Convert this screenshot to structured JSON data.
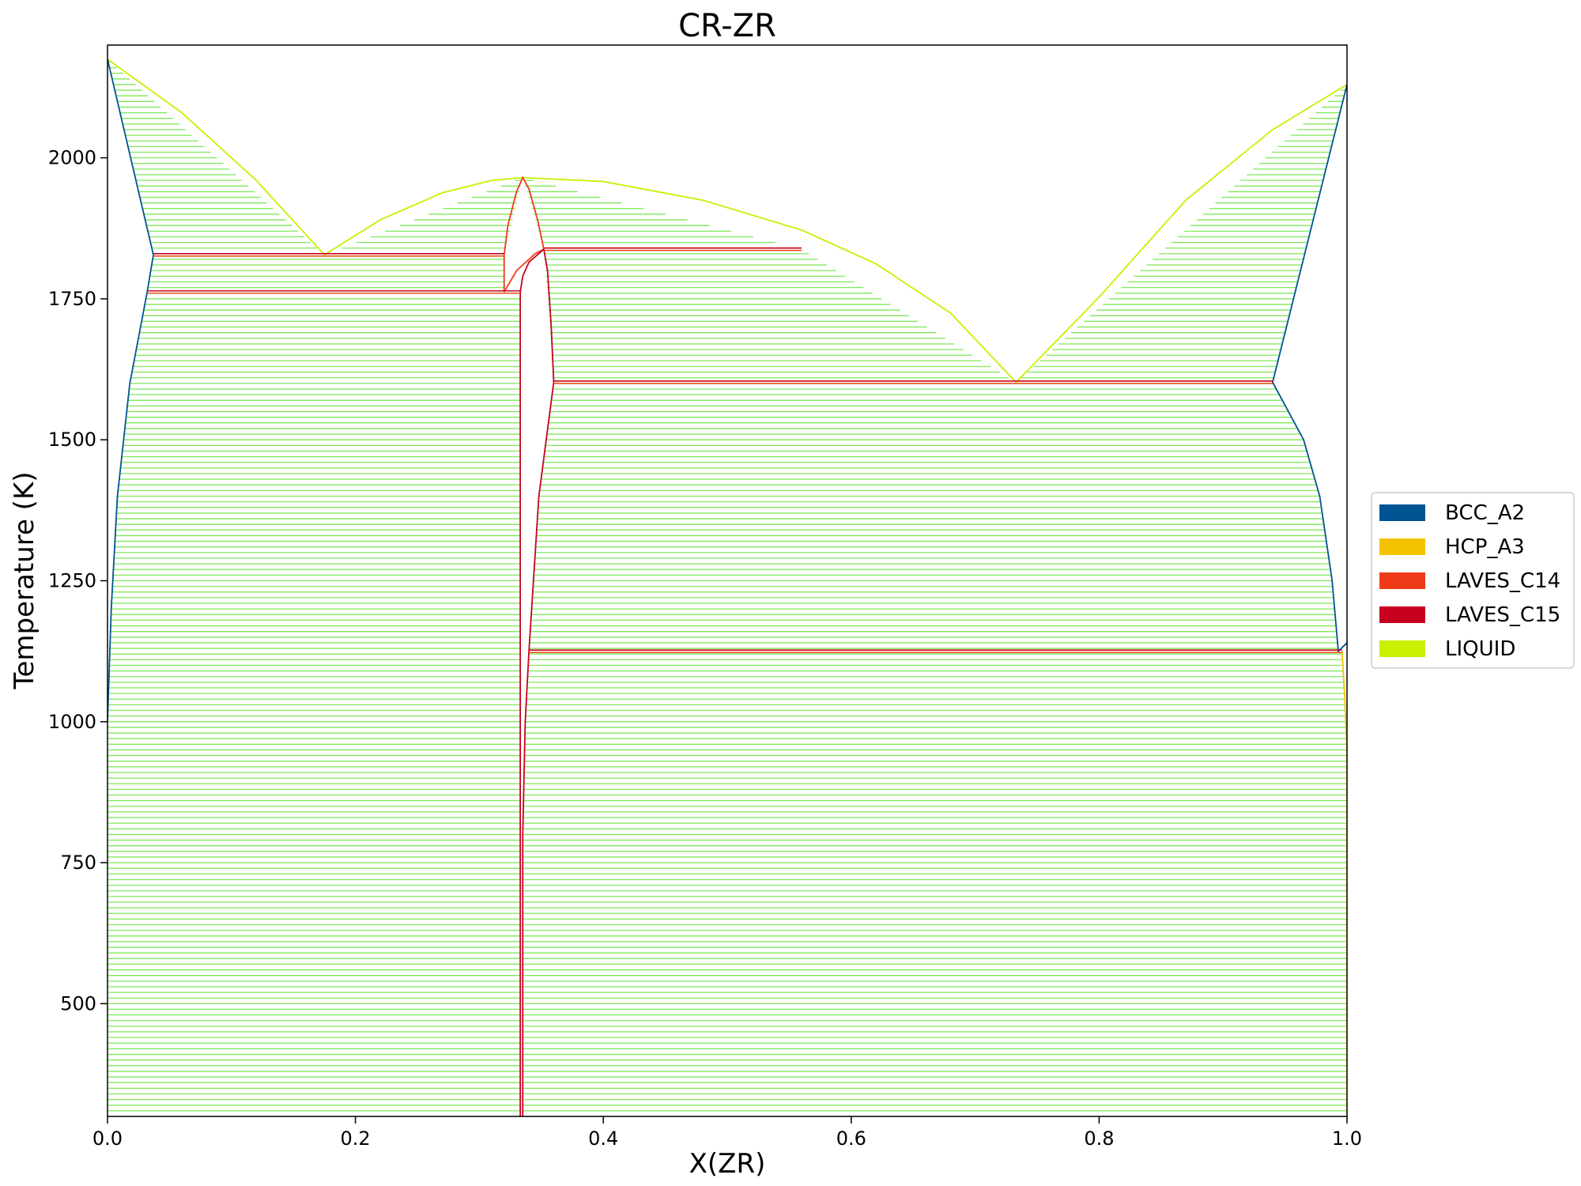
{
  "chart_data": {
    "type": "line",
    "title": "CR-ZR",
    "xlabel": "X(ZR)",
    "ylabel": "Temperature (K)",
    "xlim": [
      0.0,
      1.0
    ],
    "ylim": [
      300,
      2200
    ],
    "xticks": [
      0.0,
      0.2,
      0.4,
      0.6,
      0.8,
      1.0
    ],
    "xtick_labels": [
      "0.0",
      "0.2",
      "0.4",
      "0.6",
      "0.8",
      "1.0"
    ],
    "yticks": [
      500,
      750,
      1000,
      1250,
      1500,
      1750,
      2000
    ],
    "ytick_labels": [
      "500",
      "750",
      "1000",
      "1250",
      "1500",
      "1750",
      "2000"
    ],
    "grid": false,
    "legend_position": "right",
    "tie_line_color": "#7ee85a",
    "legend": [
      {
        "name": "BCC_A2",
        "color": "#005493"
      },
      {
        "name": "HCP_A3",
        "color": "#f4c300"
      },
      {
        "name": "LAVES_C14",
        "color": "#ee3a18"
      },
      {
        "name": "LAVES_C15",
        "color": "#c8001e"
      },
      {
        "name": "LIQUID",
        "color": "#c8f000"
      }
    ],
    "tie_line_regions": [
      {
        "name": "liquid+bcc-cr",
        "tmin": 1828,
        "tmax": 2175,
        "left": [
          [
            2175,
            0.0
          ],
          [
            1828,
            0.037
          ]
        ],
        "right": [
          [
            2175,
            0.0
          ],
          [
            1828,
            0.175
          ]
        ]
      },
      {
        "name": "liquid+c14-left",
        "tmin": 1828,
        "tmax": 1965,
        "left": [
          [
            1965,
            0.335
          ],
          [
            1828,
            0.175
          ]
        ],
        "right": [
          [
            1965,
            0.335
          ],
          [
            1828,
            0.32
          ]
        ]
      },
      {
        "name": "liquid+c14-right",
        "tmin": 1838,
        "tmax": 1965,
        "left": [
          [
            1965,
            0.335
          ],
          [
            1838,
            0.352
          ]
        ],
        "right": [
          [
            1965,
            0.335
          ],
          [
            1838,
            0.56
          ]
        ]
      },
      {
        "name": "liquid+c15",
        "tmin": 1602,
        "tmax": 1838,
        "left": [
          [
            1838,
            0.352
          ],
          [
            1602,
            0.36
          ]
        ],
        "right": [
          [
            1838,
            0.56
          ],
          [
            1602,
            0.733
          ]
        ]
      },
      {
        "name": "liquid+bcc-zr",
        "tmin": 1602,
        "tmax": 2130,
        "left": [
          [
            2130,
            1.0
          ],
          [
            1602,
            0.733
          ]
        ],
        "right": [
          [
            2130,
            1.0
          ],
          [
            1602,
            0.94
          ]
        ]
      },
      {
        "name": "bcc-cr+c14",
        "tmin": 1762,
        "tmax": 1828,
        "left": [
          [
            1828,
            0.037
          ],
          [
            1762,
            0.032
          ]
        ],
        "right": [
          [
            1828,
            0.32
          ],
          [
            1762,
            0.32
          ]
        ]
      },
      {
        "name": "bcc-cr+c15",
        "tmin": 300,
        "tmax": 1762,
        "left": [
          [
            1762,
            0.032
          ],
          [
            1600,
            0.018
          ],
          [
            1400,
            0.008
          ],
          [
            1200,
            0.003
          ],
          [
            1000,
            0.0
          ],
          [
            300,
            0.0
          ]
        ],
        "right": [
          [
            1762,
            0.333
          ],
          [
            300,
            0.333
          ]
        ]
      },
      {
        "name": "c15+bcc-zr",
        "tmin": 1125,
        "tmax": 1602,
        "left": [
          [
            1602,
            0.36
          ],
          [
            1400,
            0.348
          ],
          [
            1125,
            0.34
          ]
        ],
        "right": [
          [
            1602,
            0.94
          ],
          [
            1500,
            0.965
          ],
          [
            1400,
            0.978
          ],
          [
            1250,
            0.988
          ],
          [
            1125,
            0.993
          ]
        ]
      },
      {
        "name": "c15+hcp-zr",
        "tmin": 300,
        "tmax": 1125,
        "left": [
          [
            1125,
            0.34
          ],
          [
            1000,
            0.337
          ],
          [
            800,
            0.335
          ],
          [
            300,
            0.335
          ]
        ],
        "right": [
          [
            1125,
            0.996
          ],
          [
            950,
            1.0
          ],
          [
            300,
            1.0
          ]
        ]
      }
    ],
    "tie_line_step": 10,
    "boundaries": [
      {
        "phase": "LIQUID",
        "color": "#c8f000",
        "points": [
          [
            0.0,
            2175
          ],
          [
            0.06,
            2080
          ],
          [
            0.12,
            1960
          ],
          [
            0.175,
            1828
          ]
        ]
      },
      {
        "phase": "LIQUID",
        "color": "#c8f000",
        "points": [
          [
            0.175,
            1828
          ],
          [
            0.22,
            1890
          ],
          [
            0.27,
            1938
          ],
          [
            0.31,
            1960
          ],
          [
            0.335,
            1965
          ]
        ]
      },
      {
        "phase": "LIQUID",
        "color": "#c8f000",
        "points": [
          [
            0.335,
            1965
          ],
          [
            0.4,
            1958
          ],
          [
            0.48,
            1925
          ],
          [
            0.56,
            1872
          ],
          [
            0.62,
            1812
          ],
          [
            0.68,
            1725
          ],
          [
            0.733,
            1602
          ]
        ]
      },
      {
        "phase": "LIQUID",
        "color": "#c8f000",
        "points": [
          [
            0.733,
            1602
          ],
          [
            0.8,
            1753
          ],
          [
            0.87,
            1925
          ],
          [
            0.94,
            2050
          ],
          [
            1.0,
            2130
          ]
        ]
      },
      {
        "phase": "BCC_A2",
        "color": "#005493",
        "points": [
          [
            0.0,
            2175
          ],
          [
            0.037,
            1828
          ],
          [
            0.032,
            1762
          ],
          [
            0.018,
            1600
          ],
          [
            0.008,
            1400
          ],
          [
            0.003,
            1200
          ],
          [
            0.0,
            1000
          ]
        ]
      },
      {
        "phase": "BCC_A2",
        "color": "#005493",
        "points": [
          [
            1.0,
            2130
          ],
          [
            0.94,
            1602
          ],
          [
            0.965,
            1500
          ],
          [
            0.978,
            1400
          ],
          [
            0.988,
            1250
          ],
          [
            0.993,
            1125
          ],
          [
            1.0,
            1140
          ]
        ]
      },
      {
        "phase": "HCP_A3",
        "color": "#f4c300",
        "points": [
          [
            0.996,
            1125
          ],
          [
            0.998,
            1050
          ],
          [
            1.0,
            950
          ],
          [
            1.0,
            300
          ]
        ]
      },
      {
        "phase": "LAVES_C14",
        "color": "#ee3a18",
        "points": [
          [
            0.32,
            1828
          ],
          [
            0.323,
            1880
          ],
          [
            0.33,
            1940
          ],
          [
            0.335,
            1965
          ],
          [
            0.34,
            1945
          ],
          [
            0.347,
            1890
          ],
          [
            0.352,
            1838
          ]
        ]
      },
      {
        "phase": "LAVES_C14",
        "color": "#ee3a18",
        "points": [
          [
            0.32,
            1828
          ],
          [
            0.32,
            1762
          ]
        ]
      },
      {
        "phase": "LAVES_C14",
        "color": "#ee3a18",
        "points": [
          [
            0.32,
            1762
          ],
          [
            0.33,
            1800
          ],
          [
            0.345,
            1830
          ],
          [
            0.352,
            1838
          ]
        ]
      },
      {
        "phase": "LAVES_C15",
        "color": "#c8001e",
        "points": [
          [
            0.333,
            300
          ],
          [
            0.333,
            1762
          ],
          [
            0.335,
            1790
          ],
          [
            0.34,
            1815
          ],
          [
            0.352,
            1838
          ]
        ]
      },
      {
        "phase": "LAVES_C15",
        "color": "#c8001e",
        "points": [
          [
            0.352,
            1838
          ],
          [
            0.355,
            1800
          ],
          [
            0.358,
            1700
          ],
          [
            0.36,
            1602
          ]
        ]
      },
      {
        "phase": "LAVES_C15",
        "color": "#c8001e",
        "points": [
          [
            0.36,
            1602
          ],
          [
            0.348,
            1400
          ],
          [
            0.34,
            1125
          ],
          [
            0.337,
            1000
          ],
          [
            0.335,
            800
          ],
          [
            0.335,
            300
          ]
        ]
      }
    ],
    "invariants": [
      {
        "t": 1828,
        "x1": 0.037,
        "x2": 0.32
      },
      {
        "t": 1762,
        "x1": 0.032,
        "x2": 0.333
      },
      {
        "t": 1838,
        "x1": 0.352,
        "x2": 0.56
      },
      {
        "t": 1602,
        "x1": 0.36,
        "x2": 0.94
      },
      {
        "t": 1125,
        "x1": 0.34,
        "x2": 0.996
      }
    ]
  }
}
